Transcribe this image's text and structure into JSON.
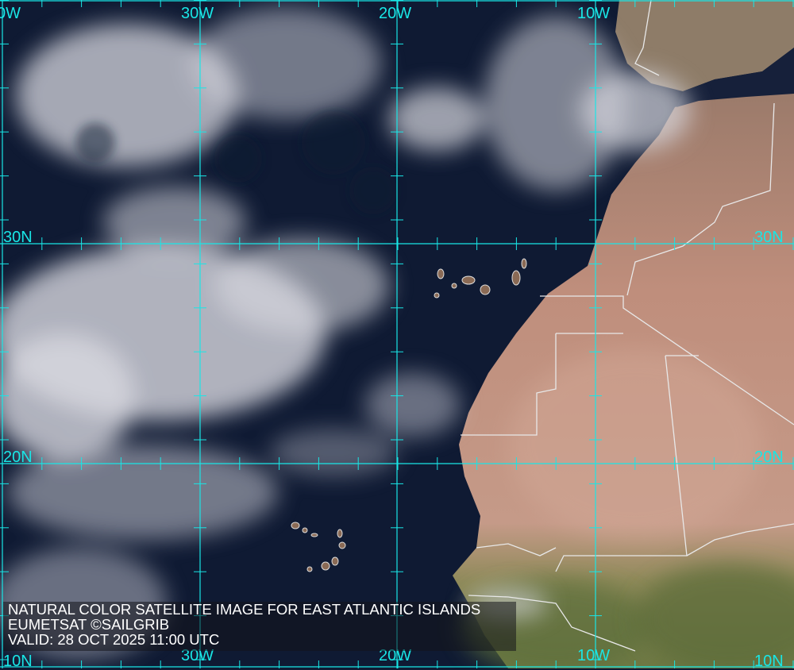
{
  "map": {
    "type": "natural color satellite image",
    "grid_color": "#19e6e6",
    "ocean_color": "#0f1a33",
    "land_color": "#b88a78",
    "top_longitude_labels": [
      "0W",
      "30W",
      "20W",
      "10W"
    ],
    "bottom_longitude_labels": [
      "30W",
      "20W",
      "10W"
    ],
    "latitude_labels_left": [
      "30N",
      "20N",
      "10N"
    ],
    "latitude_labels_right": [
      "30N",
      "20N",
      "10N"
    ]
  },
  "caption": {
    "title": "NATURAL COLOR SATELLITE IMAGE FOR EAST ATLANTIC ISLANDS",
    "source": "EUMETSAT ©SAILGRIB",
    "valid": "VALID:  28 OCT 2025 11:00 UTC"
  }
}
